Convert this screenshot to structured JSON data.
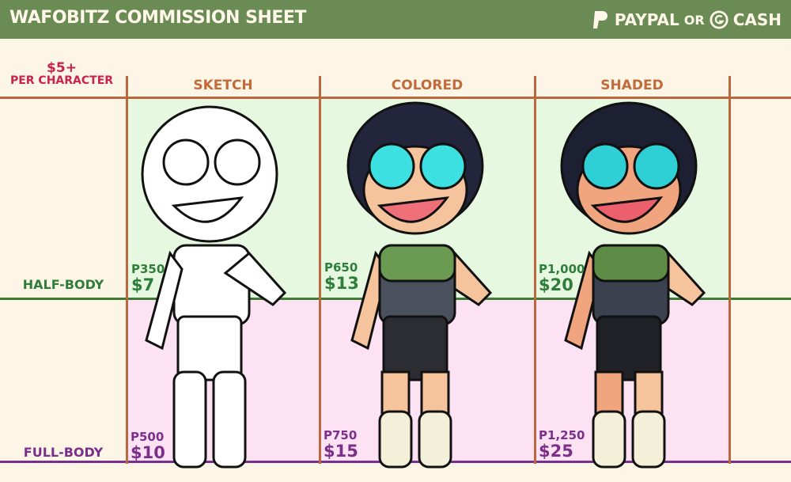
{
  "header": {
    "title": "WAFOBITZ COMMISSION SHEET",
    "payment": {
      "paypal": "PAYPAL",
      "or": "OR",
      "gcash": "CASH"
    }
  },
  "base_price": {
    "amount": "$5+",
    "label": "PER CHARACTER"
  },
  "columns": [
    "SKETCH",
    "COLORED",
    "SHADED"
  ],
  "rows": [
    "HALF-BODY",
    "FULL-BODY"
  ],
  "prices": {
    "half": [
      {
        "php": "P350",
        "usd": "$7"
      },
      {
        "php": "P650",
        "usd": "$13"
      },
      {
        "php": "P1,000",
        "usd": "$20"
      }
    ],
    "full": [
      {
        "php": "P500",
        "usd": "$10"
      },
      {
        "php": "P750",
        "usd": "$15"
      },
      {
        "php": "P1,250",
        "usd": "$25"
      }
    ]
  },
  "colors": {
    "header": "#6b8b55",
    "background": "#fdf6e6",
    "half_cell": "#e6f9e0",
    "full_cell": "#fde2f3",
    "half_text": "#2e7d3a",
    "full_text": "#7b2f8a",
    "base_text": "#c8234e",
    "column_text": "#c36a3b"
  }
}
